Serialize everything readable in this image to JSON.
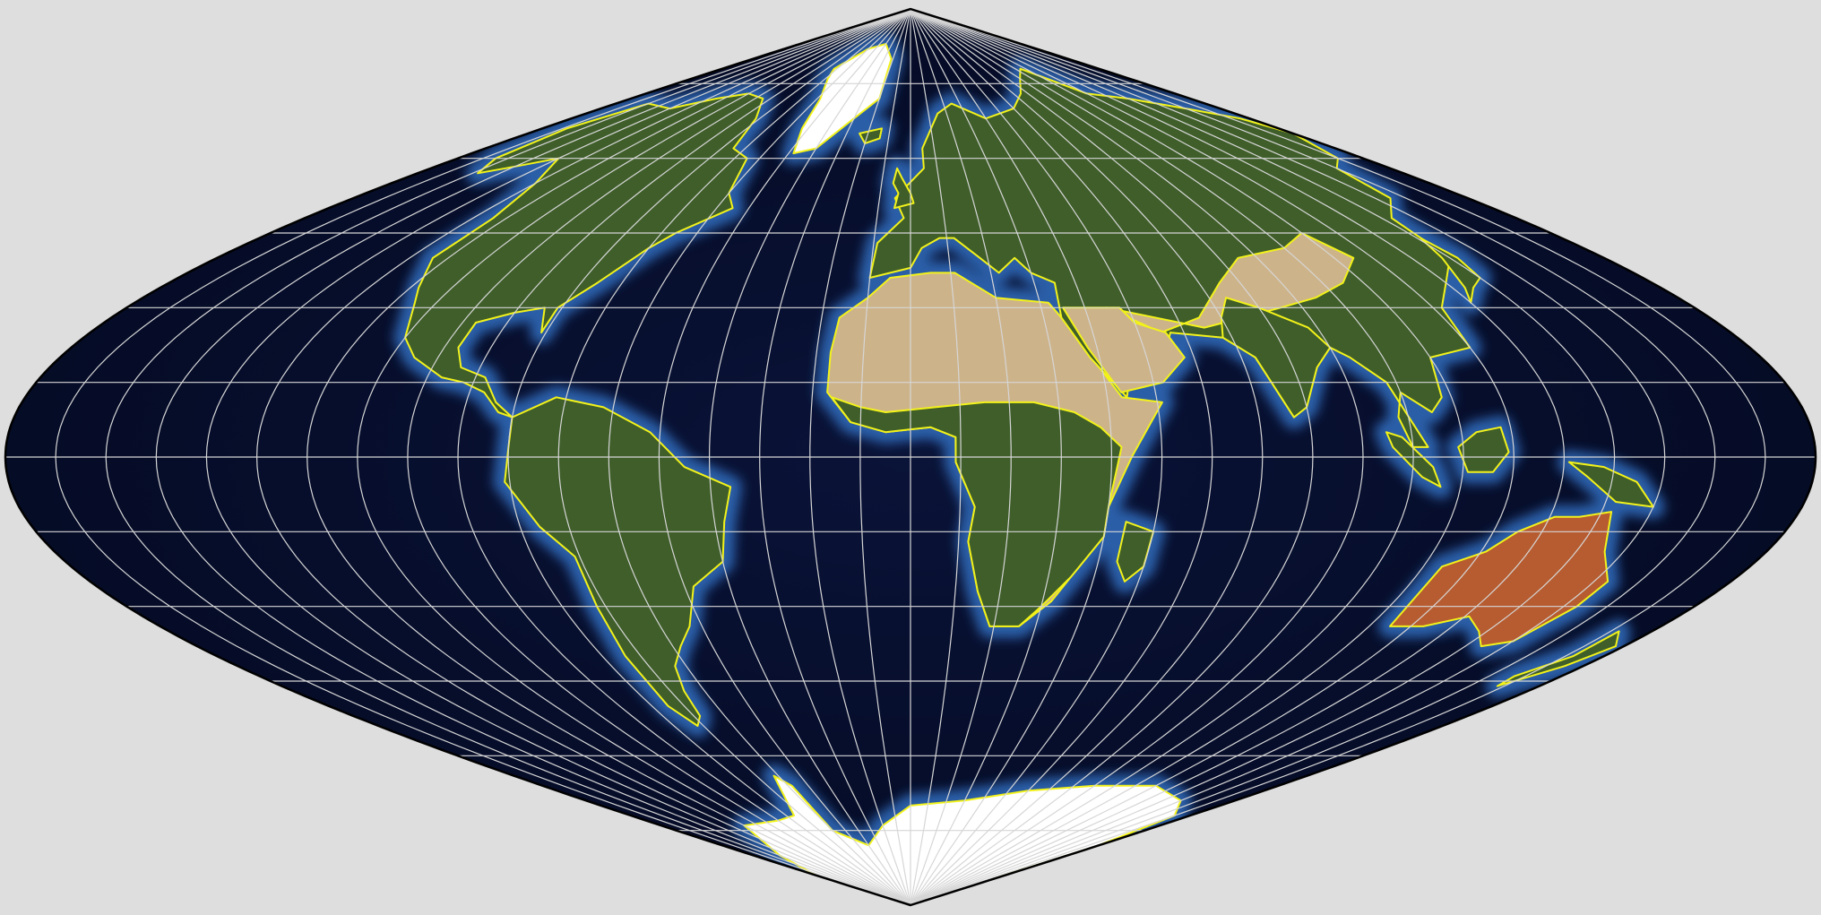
{
  "map": {
    "projection": "sinusoidal",
    "central_meridian_deg": 0,
    "graticule": {
      "lon_step_deg": 10,
      "lat_step_deg": 15
    },
    "colors": {
      "background": "#dedede",
      "ocean_deep": "#070d2a",
      "ocean_shelf": "#2a5ea8",
      "land_green": "#3f5e2a",
      "land_desert": "#cdb38a",
      "land_red": "#b65c30",
      "ice": "#ffffff",
      "coastline": "#f2f21a",
      "graticule": "#d6d6d6",
      "outline": "#000000"
    }
  }
}
